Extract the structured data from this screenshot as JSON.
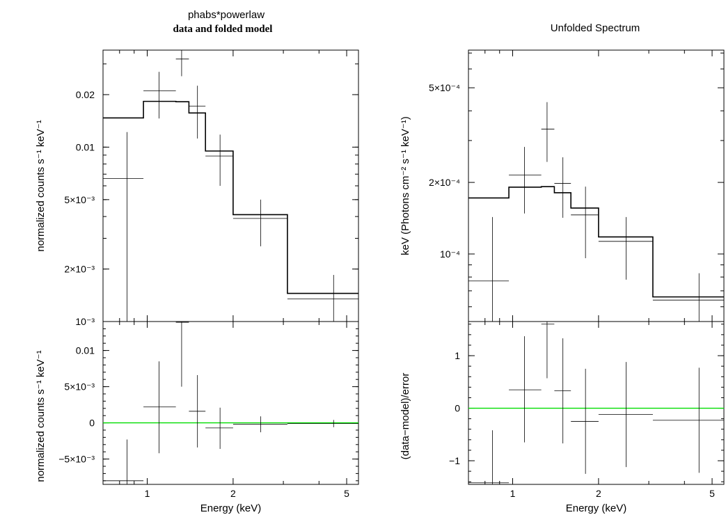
{
  "figure": {
    "left_title": "phabs*powerlaw",
    "left_subtitle": "data and folded model",
    "right_title": "Unfolded Spectrum"
  },
  "chart_data": [
    {
      "type": "line",
      "panel": "left-top",
      "title": "phabs*powerlaw",
      "subtitle": "data and folded model",
      "xlabel": "",
      "ylabel": "normalized counts s⁻¹ keV⁻¹",
      "xscale": "log",
      "yscale": "log",
      "xlim": [
        0.7,
        5.5
      ],
      "ylim": [
        0.001,
        0.036
      ],
      "yticks": [
        {
          "value": 0.02,
          "label": "0.02"
        },
        {
          "value": 0.01,
          "label": "0.01"
        },
        {
          "value": 0.005,
          "label": "5×10⁻³"
        },
        {
          "value": 0.002,
          "label": "2×10⁻³"
        },
        {
          "value": 0.001,
          "label": "10⁻³"
        }
      ],
      "data_points": [
        {
          "x": 0.85,
          "xlo": 0.7,
          "xhi": 0.97,
          "y": 0.0066,
          "ylo": 0.001,
          "yhi": 0.0122
        },
        {
          "x": 1.1,
          "xlo": 0.97,
          "xhi": 1.26,
          "y": 0.021,
          "ylo": 0.0146,
          "yhi": 0.027
        },
        {
          "x": 1.32,
          "xlo": 1.26,
          "xhi": 1.4,
          "y": 0.032,
          "ylo": 0.0255,
          "yhi": 0.036
        },
        {
          "x": 1.5,
          "xlo": 1.4,
          "xhi": 1.6,
          "y": 0.0172,
          "ylo": 0.0112,
          "yhi": 0.0225
        },
        {
          "x": 1.8,
          "xlo": 1.6,
          "xhi": 2.0,
          "y": 0.0089,
          "ylo": 0.006,
          "yhi": 0.0118
        },
        {
          "x": 2.5,
          "xlo": 2.0,
          "xhi": 3.1,
          "y": 0.0039,
          "ylo": 0.0027,
          "yhi": 0.005
        },
        {
          "x": 4.5,
          "xlo": 3.1,
          "xhi": 5.5,
          "y": 0.00135,
          "ylo": 0.001,
          "yhi": 0.00185
        }
      ],
      "model_steps": [
        {
          "xlo": 0.7,
          "xhi": 0.97,
          "y": 0.0147
        },
        {
          "xlo": 0.97,
          "xhi": 1.26,
          "y": 0.0183
        },
        {
          "xlo": 1.26,
          "xhi": 1.4,
          "y": 0.0182
        },
        {
          "xlo": 1.4,
          "xhi": 1.6,
          "y": 0.0157
        },
        {
          "xlo": 1.6,
          "xhi": 2.0,
          "y": 0.0095
        },
        {
          "xlo": 2.0,
          "xhi": 3.1,
          "y": 0.0041
        },
        {
          "xlo": 3.1,
          "xhi": 5.5,
          "y": 0.00145
        }
      ]
    },
    {
      "type": "line",
      "panel": "left-bottom",
      "xlabel": "Energy (keV)",
      "ylabel": "normalized counts s⁻¹ keV⁻¹",
      "xscale": "log",
      "yscale": "linear",
      "xlim": [
        0.7,
        5.5
      ],
      "ylim": [
        -0.0085,
        0.014
      ],
      "xticks": [
        {
          "value": 1,
          "label": "1"
        },
        {
          "value": 2,
          "label": "2"
        },
        {
          "value": 5,
          "label": "5"
        }
      ],
      "yticks": [
        {
          "value": 0.01,
          "label": "0.01"
        },
        {
          "value": 0.005,
          "label": "5×10⁻³"
        },
        {
          "value": 0,
          "label": "0"
        },
        {
          "value": -0.005,
          "label": "−5×10⁻³"
        }
      ],
      "zero_line": 0,
      "data_points": [
        {
          "x": 0.85,
          "xlo": 0.7,
          "xhi": 0.97,
          "y": -0.008,
          "ylo": -0.0085,
          "yhi": -0.0023
        },
        {
          "x": 1.1,
          "xlo": 0.97,
          "xhi": 1.26,
          "y": 0.0022,
          "ylo": -0.0042,
          "yhi": 0.0085
        },
        {
          "x": 1.32,
          "xlo": 1.26,
          "xhi": 1.4,
          "y": 0.0139,
          "ylo": 0.005,
          "yhi": 0.014
        },
        {
          "x": 1.5,
          "xlo": 1.4,
          "xhi": 1.6,
          "y": 0.0016,
          "ylo": -0.0034,
          "yhi": 0.0066
        },
        {
          "x": 1.8,
          "xlo": 1.6,
          "xhi": 2.0,
          "y": -0.0007,
          "ylo": -0.0036,
          "yhi": 0.0021
        },
        {
          "x": 2.5,
          "xlo": 2.0,
          "xhi": 3.1,
          "y": -0.0002,
          "ylo": -0.0013,
          "yhi": 0.0009
        },
        {
          "x": 4.5,
          "xlo": 3.1,
          "xhi": 5.5,
          "y": -0.0001,
          "ylo": -0.0006,
          "yhi": 0.0004
        }
      ]
    },
    {
      "type": "line",
      "panel": "right-top",
      "title": "Unfolded Spectrum",
      "xlabel": "",
      "ylabel": "keV (Photons cm⁻² s⁻¹ keV⁻¹)",
      "xscale": "log",
      "yscale": "log",
      "xlim": [
        0.7,
        5.5
      ],
      "ylim": [
        5.2e-05,
        0.00072
      ],
      "yticks": [
        {
          "value": 0.0005,
          "label": "5×10⁻⁴"
        },
        {
          "value": 0.0002,
          "label": "2×10⁻⁴"
        },
        {
          "value": 0.0001,
          "label": "10⁻⁴"
        }
      ],
      "yminor": [
        6e-05,
        7e-05,
        8e-05,
        9e-05,
        0.0003,
        0.0004,
        0.0006,
        0.0007
      ],
      "data_points": [
        {
          "x": 0.85,
          "xlo": 0.7,
          "xhi": 0.97,
          "y": 7.7e-05,
          "ylo": 5.2e-05,
          "yhi": 0.000143
        },
        {
          "x": 1.1,
          "xlo": 0.97,
          "xhi": 1.26,
          "y": 0.000215,
          "ylo": 0.000148,
          "yhi": 0.000282
        },
        {
          "x": 1.32,
          "xlo": 1.26,
          "xhi": 1.4,
          "y": 0.000335,
          "ylo": 0.000244,
          "yhi": 0.000435
        },
        {
          "x": 1.5,
          "xlo": 1.4,
          "xhi": 1.6,
          "y": 0.000198,
          "ylo": 0.000142,
          "yhi": 0.000255
        },
        {
          "x": 1.8,
          "xlo": 1.6,
          "xhi": 2.0,
          "y": 0.000146,
          "ylo": 9.6e-05,
          "yhi": 0.000192
        },
        {
          "x": 2.5,
          "xlo": 2.0,
          "xhi": 3.1,
          "y": 0.000113,
          "ylo": 7.8e-05,
          "yhi": 0.000143
        },
        {
          "x": 4.5,
          "xlo": 3.1,
          "xhi": 5.5,
          "y": 6.4e-05,
          "ylo": 5.2e-05,
          "yhi": 8.3e-05
        }
      ],
      "model_steps": [
        {
          "xlo": 0.7,
          "xhi": 0.97,
          "y": 0.000172
        },
        {
          "xlo": 0.97,
          "xhi": 1.26,
          "y": 0.000191
        },
        {
          "xlo": 1.26,
          "xhi": 1.4,
          "y": 0.000192
        },
        {
          "xlo": 1.4,
          "xhi": 1.6,
          "y": 0.000181
        },
        {
          "xlo": 1.6,
          "xhi": 2.0,
          "y": 0.000156
        },
        {
          "xlo": 2.0,
          "xhi": 3.1,
          "y": 0.000118
        },
        {
          "xlo": 3.1,
          "xhi": 5.5,
          "y": 6.6e-05
        }
      ]
    },
    {
      "type": "line",
      "panel": "right-bottom",
      "xlabel": "Energy (keV)",
      "ylabel": "(data−model)/error",
      "xscale": "log",
      "yscale": "linear",
      "xlim": [
        0.7,
        5.5
      ],
      "ylim": [
        -1.45,
        1.65
      ],
      "xticks": [
        {
          "value": 1,
          "label": "1"
        },
        {
          "value": 2,
          "label": "2"
        },
        {
          "value": 5,
          "label": "5"
        }
      ],
      "yticks": [
        {
          "value": 1,
          "label": "1"
        },
        {
          "value": 0,
          "label": "0"
        },
        {
          "value": -1,
          "label": "−1"
        }
      ],
      "zero_line": 0,
      "data_points": [
        {
          "x": 0.85,
          "xlo": 0.7,
          "xhi": 0.97,
          "y": -1.42,
          "ylo": -1.45,
          "yhi": -0.42
        },
        {
          "x": 1.1,
          "xlo": 0.97,
          "xhi": 1.26,
          "y": 0.35,
          "ylo": -0.65,
          "yhi": 1.37
        },
        {
          "x": 1.32,
          "xlo": 1.26,
          "xhi": 1.4,
          "y": 1.6,
          "ylo": 0.57,
          "yhi": 1.65
        },
        {
          "x": 1.5,
          "xlo": 1.4,
          "xhi": 1.6,
          "y": 0.33,
          "ylo": -0.67,
          "yhi": 1.33
        },
        {
          "x": 1.8,
          "xlo": 1.6,
          "xhi": 2.0,
          "y": -0.25,
          "ylo": -1.25,
          "yhi": 0.75
        },
        {
          "x": 2.5,
          "xlo": 2.0,
          "xhi": 3.1,
          "y": -0.12,
          "ylo": -1.12,
          "yhi": 0.88
        },
        {
          "x": 4.5,
          "xlo": 3.1,
          "xhi": 5.5,
          "y": -0.23,
          "ylo": -1.23,
          "yhi": 0.77
        }
      ]
    }
  ]
}
